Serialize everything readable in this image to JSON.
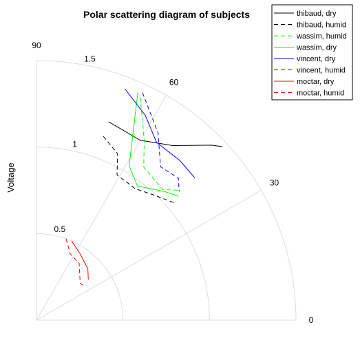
{
  "chart_data": {
    "type": "polar-line",
    "title": "Polar scattering diagram of subjects",
    "ylabel": "Voltage",
    "angle_unit": "degrees",
    "angle_ticks": [
      "0",
      "30",
      "60",
      "90"
    ],
    "radial_ticks": [
      "0.5",
      "1",
      "1.5"
    ],
    "rlim": [
      0,
      1.5
    ],
    "thetalim": [
      0,
      90
    ],
    "grid": true,
    "legend_position": "top-right",
    "series": [
      {
        "name": "thibaud, dry",
        "color": "#000000",
        "dash": "solid",
        "points": [
          {
            "theta": 70,
            "r": 1.22
          },
          {
            "theta": 60,
            "r": 1.2
          },
          {
            "theta": 52,
            "r": 1.28
          },
          {
            "theta": 45,
            "r": 1.43
          },
          {
            "theta": 43,
            "r": 1.47
          }
        ]
      },
      {
        "name": "thibaud, humid",
        "color": "#000000",
        "dash": "dashed",
        "points": [
          {
            "theta": 70,
            "r": 1.13
          },
          {
            "theta": 64,
            "r": 1.07
          },
          {
            "theta": 61,
            "r": 0.96
          },
          {
            "theta": 53,
            "r": 0.95
          },
          {
            "theta": 47,
            "r": 0.99
          },
          {
            "theta": 40,
            "r": 1.05
          }
        ]
      },
      {
        "name": "wassim, humid",
        "color": "#00ff00",
        "dash": "dashed",
        "points": [
          {
            "theta": 65,
            "r": 1.42
          },
          {
            "theta": 59,
            "r": 1.21
          },
          {
            "theta": 55,
            "r": 1.08
          },
          {
            "theta": 46,
            "r": 1.05
          },
          {
            "theta": 42,
            "r": 1.12
          }
        ]
      },
      {
        "name": "wassim, dry",
        "color": "#00ff00",
        "dash": "solid",
        "points": [
          {
            "theta": 66,
            "r": 1.44
          },
          {
            "theta": 59,
            "r": 1.04
          },
          {
            "theta": 53,
            "r": 0.97
          },
          {
            "theta": 45,
            "r": 1.05
          },
          {
            "theta": 41,
            "r": 1.09
          }
        ]
      },
      {
        "name": "vincent, dry",
        "color": "#0000ff",
        "dash": "solid",
        "points": [
          {
            "theta": 69,
            "r": 1.43
          },
          {
            "theta": 62,
            "r": 1.34
          },
          {
            "theta": 56,
            "r": 1.24
          },
          {
            "theta": 48,
            "r": 1.24
          },
          {
            "theta": 42,
            "r": 1.23
          }
        ]
      },
      {
        "name": "vincent, humid",
        "color": "#0000ff",
        "dash": "dashed",
        "points": [
          {
            "theta": 65,
            "r": 1.45
          },
          {
            "theta": 57,
            "r": 1.29
          },
          {
            "theta": 51,
            "r": 1.14
          },
          {
            "theta": 45,
            "r": 1.16
          },
          {
            "theta": 42,
            "r": 1.11
          }
        ]
      },
      {
        "name": "moctar, dry",
        "color": "#ff0000",
        "dash": "solid",
        "points": [
          {
            "theta": 66,
            "r": 0.5
          },
          {
            "theta": 57,
            "r": 0.46
          },
          {
            "theta": 45,
            "r": 0.42
          },
          {
            "theta": 38,
            "r": 0.38
          }
        ]
      },
      {
        "name": "moctar, humid",
        "color": "#ff0000",
        "dash": "dashed",
        "points": [
          {
            "theta": 70,
            "r": 0.5
          },
          {
            "theta": 63,
            "r": 0.43
          },
          {
            "theta": 53,
            "r": 0.41
          },
          {
            "theta": 40,
            "r": 0.33
          },
          {
            "theta": 35,
            "r": 0.34
          }
        ]
      }
    ]
  }
}
